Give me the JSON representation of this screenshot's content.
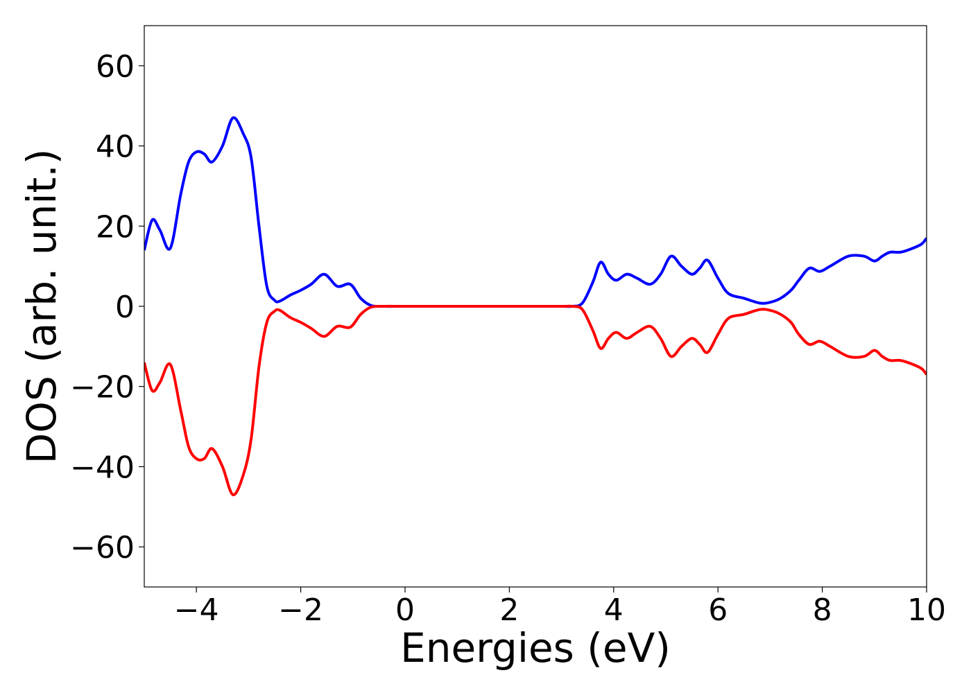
{
  "chart_data": {
    "type": "line",
    "xlabel": "Energies (eV)",
    "ylabel": "DOS (arb. unit.)",
    "x": [
      -5,
      -4.85,
      -4.7,
      -4.5,
      -4.3,
      -4.15,
      -4.0,
      -3.85,
      -3.7,
      -3.5,
      -3.3,
      -3.1,
      -2.95,
      -2.8,
      -2.65,
      -2.5,
      -2.4,
      -2.2,
      -2.0,
      -1.8,
      -1.55,
      -1.3,
      -1.05,
      -0.85,
      -0.65,
      -0.4,
      0,
      1,
      2,
      3,
      3.2,
      3.4,
      3.6,
      3.75,
      3.9,
      4.05,
      4.25,
      4.45,
      4.7,
      4.9,
      5.1,
      5.3,
      5.5,
      5.65,
      5.8,
      6.0,
      6.2,
      6.5,
      6.8,
      7.0,
      7.2,
      7.4,
      7.55,
      7.75,
      7.95,
      8.15,
      8.5,
      8.8,
      9.0,
      9.15,
      9.3,
      9.5,
      9.7,
      9.9,
      10
    ],
    "series": [
      {
        "color": "#0000ff",
        "values": [
          14,
          21.5,
          19,
          14.5,
          28,
          36,
          38.5,
          38,
          36,
          40,
          47,
          43,
          37,
          20,
          5,
          1.5,
          1.3,
          2.8,
          4,
          5.5,
          8,
          5,
          5.5,
          2,
          0.2,
          0,
          0,
          0,
          0,
          0,
          0,
          0.8,
          6,
          11,
          8,
          6.5,
          8,
          7,
          5.5,
          8,
          12.5,
          10,
          8,
          9.5,
          11.5,
          7,
          3.2,
          2,
          0.8,
          1,
          2,
          4,
          6.5,
          9.5,
          8.7,
          10,
          12.5,
          12.5,
          11.3,
          12.5,
          13.5,
          13.5,
          14.3,
          15.5,
          17
        ]
      },
      {
        "color": "#ff0000",
        "values": [
          -14,
          -21,
          -19,
          -14.5,
          -26,
          -35,
          -38,
          -38,
          -35.5,
          -40,
          -47,
          -42,
          -33,
          -15,
          -4,
          -1.2,
          -1,
          -2.8,
          -4,
          -5.5,
          -7.5,
          -5,
          -5.2,
          -2,
          -0.2,
          0,
          0,
          0,
          0,
          0,
          0,
          -0.8,
          -6,
          -10.5,
          -8,
          -6.5,
          -8,
          -6.5,
          -5,
          -8,
          -12.5,
          -10,
          -8,
          -9.5,
          -11.5,
          -7,
          -3,
          -2,
          -0.8,
          -1,
          -2,
          -4,
          -7,
          -9.5,
          -8.7,
          -10,
          -12.5,
          -12.5,
          -11,
          -12.5,
          -13.5,
          -13.5,
          -14.3,
          -15.5,
          -17
        ]
      }
    ],
    "xlim": [
      -5,
      10
    ],
    "xticks": [
      {
        "value": -4,
        "label": "−4"
      },
      {
        "value": -2,
        "label": "−2"
      },
      0,
      2,
      4,
      6,
      8,
      10
    ],
    "ylim": [
      -70,
      70
    ],
    "yticks": [
      {
        "value": -60,
        "label": "−60"
      },
      {
        "value": -40,
        "label": "−40"
      },
      {
        "value": -20,
        "label": "−20"
      },
      0,
      20,
      40,
      60
    ]
  }
}
